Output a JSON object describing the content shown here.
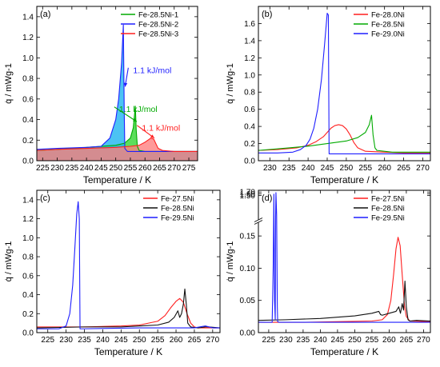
{
  "chart_data": [
    {
      "type": "line",
      "panel_label": "(a)",
      "xlabel": "Temperature / K",
      "ylabel": "q̇ / mWg-1",
      "xlim": [
        223,
        278
      ],
      "ylim": [
        0,
        1.5
      ],
      "xticks": [
        225,
        230,
        235,
        240,
        245,
        250,
        255,
        260,
        265,
        270,
        275
      ],
      "yticks": [
        0.0,
        0.2,
        0.4,
        0.6,
        0.8,
        1.0,
        1.2,
        1.4
      ],
      "legend_position": "top-right",
      "series": [
        {
          "name": "Fe-28.5Ni-1",
          "color": "#00aa00",
          "fill": "#33d633",
          "x": [
            223,
            230,
            235,
            240,
            245,
            250,
            253,
            255,
            256,
            256.7,
            257,
            257.4,
            258,
            260,
            270,
            278
          ],
          "y": [
            0.1,
            0.11,
            0.12,
            0.13,
            0.14,
            0.15,
            0.17,
            0.22,
            0.32,
            0.53,
            0.3,
            0.14,
            0.1,
            0.09,
            0.09,
            0.09
          ]
        },
        {
          "name": "Fe-28.5Ni-2",
          "color": "#1f1fff",
          "fill": "#1fb4f0",
          "x": [
            223,
            230,
            240,
            245,
            248,
            250,
            251,
            252,
            252.6,
            252.9,
            253.1,
            254,
            260,
            270,
            278
          ],
          "y": [
            0.11,
            0.12,
            0.13,
            0.14,
            0.22,
            0.4,
            0.6,
            0.95,
            1.32,
            0.5,
            0.12,
            0.09,
            0.09,
            0.09,
            0.09
          ]
        },
        {
          "name": "Fe-28.5Ni-3",
          "color": "#ff1f1f",
          "fill": "#ff8080",
          "x": [
            223,
            230,
            240,
            250,
            255,
            258,
            260,
            261,
            262,
            263,
            263.5,
            264.5,
            266,
            270,
            278
          ],
          "y": [
            0.1,
            0.11,
            0.12,
            0.13,
            0.14,
            0.15,
            0.18,
            0.2,
            0.22,
            0.21,
            0.18,
            0.12,
            0.1,
            0.09,
            0.09
          ]
        }
      ],
      "annotations": [
        {
          "text": "1.1 kJ/mol",
          "color": "#1f1fff",
          "x": 262.5,
          "y": 0.88,
          "arrow_to": [
            253.2,
            0.72
          ]
        },
        {
          "text": "1.1 kJ/mol",
          "color": "#00aa00",
          "x": 257.7,
          "y": 0.5,
          "arrow_to": [
            257.2,
            0.38
          ]
        },
        {
          "text": "1.1 kJ/mol",
          "color": "#ff1f1f",
          "x": 265.5,
          "y": 0.32,
          "arrow_to": [
            263.2,
            0.22
          ]
        }
      ]
    },
    {
      "type": "line",
      "panel_label": "(b)",
      "xlabel": "Temperature / K",
      "ylabel": "q̇ / mWg-1",
      "xlim": [
        227,
        272
      ],
      "ylim": [
        0,
        1.8
      ],
      "xticks": [
        230,
        235,
        240,
        245,
        250,
        255,
        260,
        265,
        270
      ],
      "yticks": [
        0.0,
        0.2,
        0.4,
        0.6,
        0.8,
        1.0,
        1.2,
        1.4,
        1.6
      ],
      "legend_position": "top-right",
      "series": [
        {
          "name": "Fe-28.0Ni",
          "color": "#ff1f1f",
          "x": [
            227,
            232,
            237,
            240,
            242,
            244,
            245,
            246,
            247,
            248,
            249,
            250,
            251,
            252,
            253,
            255,
            260,
            265,
            272
          ],
          "y": [
            0.12,
            0.13,
            0.15,
            0.18,
            0.22,
            0.28,
            0.33,
            0.38,
            0.41,
            0.42,
            0.41,
            0.37,
            0.3,
            0.21,
            0.15,
            0.11,
            0.1,
            0.09,
            0.09
          ]
        },
        {
          "name": "Fe-28.5Ni",
          "color": "#00aa00",
          "x": [
            227,
            235,
            240,
            245,
            250,
            253,
            255,
            256,
            256.6,
            257,
            257.5,
            258,
            262,
            272
          ],
          "y": [
            0.12,
            0.15,
            0.17,
            0.2,
            0.23,
            0.27,
            0.33,
            0.42,
            0.53,
            0.3,
            0.15,
            0.12,
            0.1,
            0.1
          ]
        },
        {
          "name": "Fe-29.0Ni",
          "color": "#1f1fff",
          "x": [
            227,
            232,
            236,
            238,
            239.5,
            240.5,
            241.5,
            242.5,
            243.5,
            244.3,
            245,
            245.3,
            245.5,
            246,
            250,
            260,
            272
          ],
          "y": [
            0.09,
            0.09,
            0.1,
            0.13,
            0.18,
            0.25,
            0.38,
            0.6,
            0.95,
            1.35,
            1.72,
            1.7,
            0.08,
            0.08,
            0.08,
            0.08,
            0.08
          ]
        }
      ]
    },
    {
      "type": "line",
      "panel_label": "(c)",
      "xlabel": "Temperature / K",
      "ylabel": "q̇ / mWg-1",
      "xlim": [
        222,
        272
      ],
      "ylim": [
        0,
        1.5
      ],
      "xticks": [
        225,
        230,
        235,
        240,
        245,
        250,
        255,
        260,
        265,
        270
      ],
      "yticks": [
        0.0,
        0.2,
        0.4,
        0.6,
        0.8,
        1.0,
        1.2,
        1.4
      ],
      "legend_position": "top-right",
      "series": [
        {
          "name": "Fe-27.5Ni",
          "color": "#ff1f1f",
          "x": [
            222,
            235,
            245,
            250,
            255,
            257,
            258.5,
            260,
            261,
            262,
            263,
            264,
            265,
            266,
            272
          ],
          "y": [
            0.06,
            0.06,
            0.07,
            0.08,
            0.12,
            0.18,
            0.26,
            0.33,
            0.36,
            0.32,
            0.2,
            0.1,
            0.06,
            0.05,
            0.05
          ]
        },
        {
          "name": "Fe-28.5Ni",
          "color": "#111111",
          "x": [
            222,
            235,
            245,
            250,
            255,
            258,
            259.5,
            260.5,
            261,
            261.5,
            262,
            262.4,
            262.8,
            263.2,
            264,
            266,
            268,
            269,
            272
          ],
          "y": [
            0.05,
            0.06,
            0.06,
            0.07,
            0.08,
            0.11,
            0.16,
            0.23,
            0.16,
            0.2,
            0.3,
            0.46,
            0.3,
            0.1,
            0.06,
            0.05,
            0.06,
            0.06,
            0.05
          ]
        },
        {
          "name": "Fe-29.5Ni",
          "color": "#1f1fff",
          "x": [
            222,
            228,
            230,
            231,
            231.8,
            232.4,
            232.9,
            233.3,
            233.6,
            233.8,
            234.2,
            250,
            265,
            268,
            270,
            272
          ],
          "y": [
            0.04,
            0.04,
            0.07,
            0.2,
            0.5,
            0.9,
            1.25,
            1.38,
            1.2,
            0.04,
            0.04,
            0.05,
            0.05,
            0.07,
            0.05,
            0.05
          ]
        }
      ]
    },
    {
      "type": "line",
      "panel_label": "(d)",
      "xlabel": "Temperature / K",
      "ylabel": "q̇ / mWg-1",
      "broken_axis": true,
      "xlim": [
        222,
        272
      ],
      "ylim_lower": [
        0,
        0.17
      ],
      "ylim_upper": [
        0.17,
        1.8
      ],
      "xticks": [
        225,
        230,
        235,
        240,
        245,
        250,
        255,
        260,
        265,
        270
      ],
      "yticks_lower": [
        0.0,
        0.05,
        0.1,
        0.15
      ],
      "yticks_upper": [
        1.5,
        1.6,
        1.7
      ],
      "legend_position": "top-right",
      "series": [
        {
          "name": "Fe-27.5Ni",
          "color": "#ff1f1f",
          "x": [
            222,
            235,
            245,
            255,
            258,
            259.5,
            260.5,
            261.3,
            262,
            262.6,
            263.2,
            263.8,
            264.5,
            265,
            266,
            272
          ],
          "y": [
            0.016,
            0.016,
            0.017,
            0.018,
            0.02,
            0.028,
            0.05,
            0.09,
            0.13,
            0.148,
            0.135,
            0.09,
            0.04,
            0.025,
            0.018,
            0.017
          ]
        },
        {
          "name": "Fe-28.5Ni",
          "color": "#111111",
          "x": [
            222,
            230,
            240,
            250,
            255,
            257,
            257.5,
            258,
            260,
            262,
            262.8,
            263.3,
            263.8,
            264.2,
            264.6,
            265,
            265.5,
            266,
            268,
            272
          ],
          "y": [
            0.019,
            0.02,
            0.022,
            0.026,
            0.03,
            0.033,
            0.028,
            0.027,
            0.03,
            0.033,
            0.04,
            0.03,
            0.045,
            0.035,
            0.08,
            0.04,
            0.02,
            0.018,
            0.019,
            0.018
          ]
        },
        {
          "name": "Fe-29.5Ni",
          "color": "#1f1fff",
          "x": [
            222,
            226,
            226.3,
            226.5,
            226.7,
            226.9,
            227,
            227.1,
            227.3,
            227.5,
            227.6,
            228,
            240,
            255,
            272
          ],
          "y": [
            0.016,
            0.016,
            0.1,
            1.58,
            0.05,
            0.02,
            0.3,
            1.67,
            0.4,
            0.04,
            0.017,
            0.016,
            0.016,
            0.016,
            0.016
          ]
        }
      ]
    }
  ]
}
